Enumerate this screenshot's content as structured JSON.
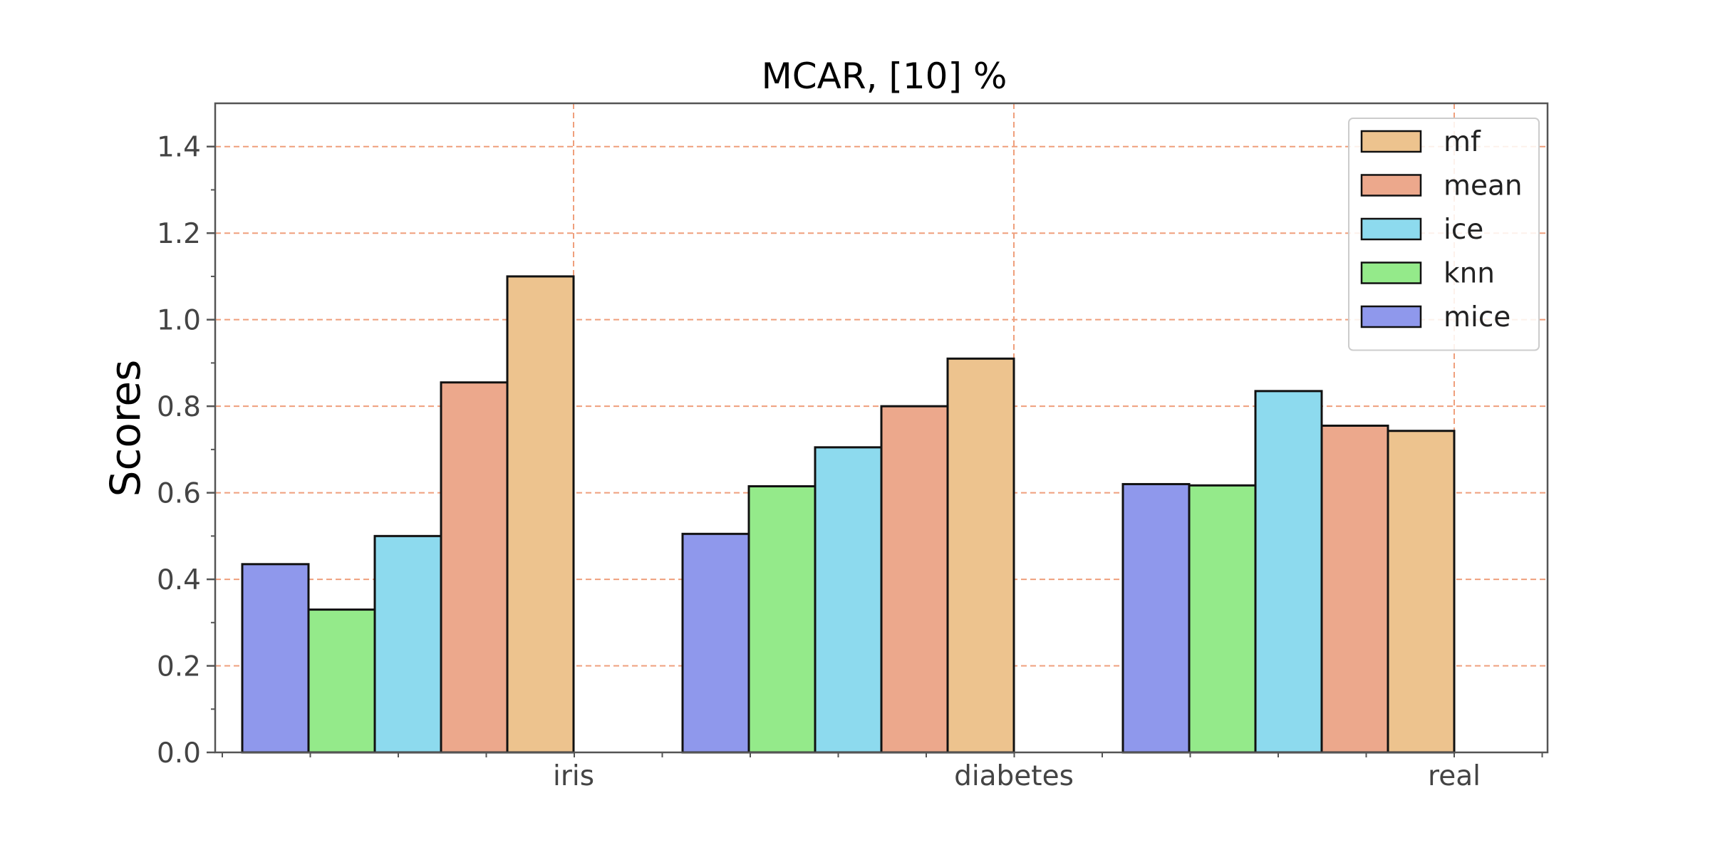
{
  "chart_data": {
    "type": "bar",
    "title": "MCAR, [10] %",
    "xlabel": "",
    "ylabel": "Scores",
    "categories": [
      "iris",
      "diabetes",
      "real"
    ],
    "ylim": [
      0,
      1.5
    ],
    "yticks": [
      "0.0",
      "0.2",
      "0.4",
      "0.6",
      "0.8",
      "1.0",
      "1.2",
      "1.4"
    ],
    "grid": true,
    "legend_position": "top-right",
    "series": [
      {
        "name": "mice",
        "color": "#8f98ec",
        "values": [
          0.435,
          0.505,
          0.62
        ]
      },
      {
        "name": "knn",
        "color": "#94ea8a",
        "values": [
          0.33,
          0.615,
          0.617
        ]
      },
      {
        "name": "ice",
        "color": "#8ddaee",
        "values": [
          0.5,
          0.705,
          0.835
        ]
      },
      {
        "name": "mean",
        "color": "#eca88c",
        "values": [
          0.855,
          0.8,
          0.755
        ]
      },
      {
        "name": "mf",
        "color": "#edc38e",
        "values": [
          1.1,
          0.91,
          0.743
        ]
      }
    ],
    "legend_order": [
      "mf",
      "mean",
      "ice",
      "knn",
      "mice"
    ],
    "grid_color": "#ef9f7c"
  }
}
